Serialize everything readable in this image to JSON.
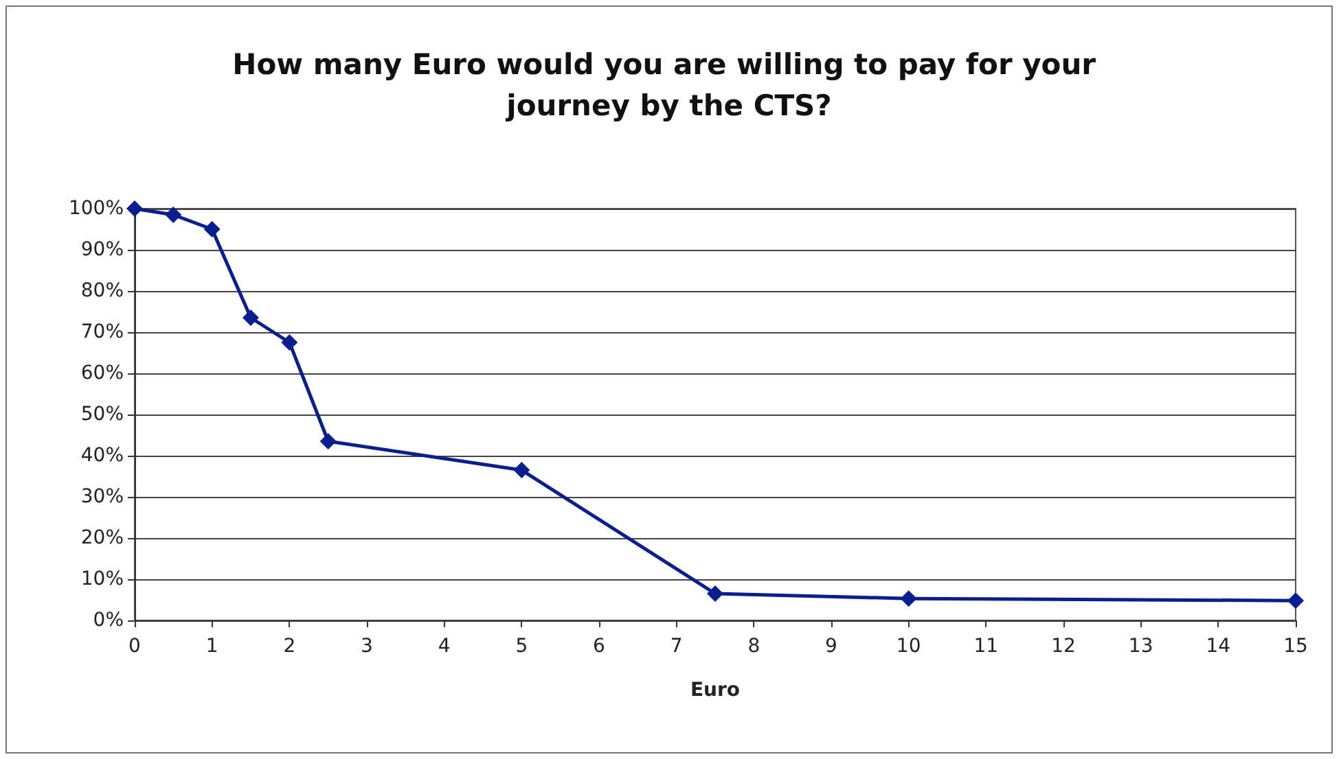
{
  "chart_data": {
    "type": "line",
    "title": "How many Euro would you are willing to pay for your journey by the CTS?",
    "xlabel": "Euro",
    "series": [
      {
        "color": "#0a1f8f",
        "x": [
          0,
          0.5,
          1,
          1.5,
          2,
          2.5,
          5,
          7.5,
          10,
          15
        ],
        "values": [
          100,
          98.5,
          95,
          73.5,
          67.5,
          43.5,
          36.5,
          6.5,
          5.3,
          4.8
        ]
      }
    ],
    "xlim": [
      0,
      15
    ],
    "xticks": [
      0,
      1,
      2,
      3,
      4,
      5,
      6,
      7,
      8,
      9,
      10,
      11,
      12,
      13,
      14,
      15
    ],
    "ylim": [
      0,
      100
    ],
    "yticks": [
      {
        "value": 0,
        "label": "0%"
      },
      {
        "value": 10,
        "label": "10%"
      },
      {
        "value": 20,
        "label": "20%"
      },
      {
        "value": 30,
        "label": "30%"
      },
      {
        "value": 40,
        "label": "40%"
      },
      {
        "value": 50,
        "label": "50%"
      },
      {
        "value": 60,
        "label": "60%"
      },
      {
        "value": 70,
        "label": "70%"
      },
      {
        "value": 80,
        "label": "80%"
      },
      {
        "value": 90,
        "label": "90%"
      },
      {
        "value": 100,
        "label": "100%"
      }
    ],
    "grid": "y",
    "marker": "diamond",
    "line_style": "solid"
  }
}
